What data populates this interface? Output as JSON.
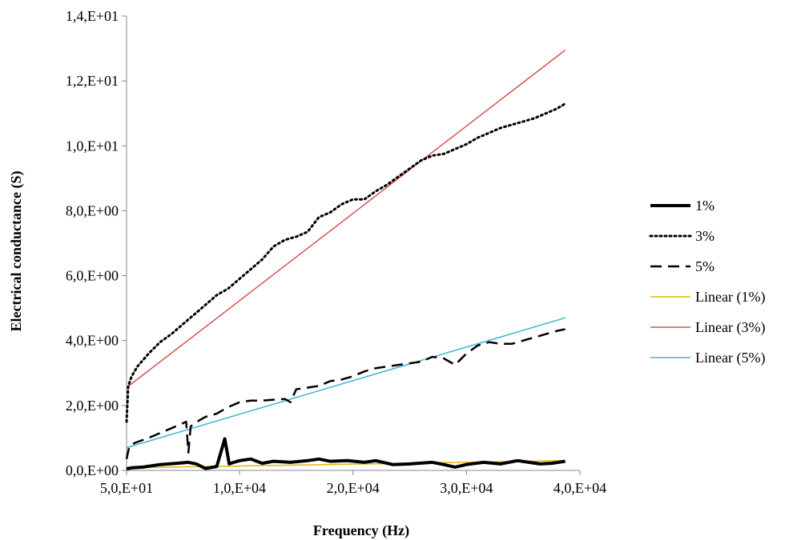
{
  "chart_data": {
    "type": "line",
    "title": "",
    "xlabel": "Frequency (Hz)",
    "ylabel": "Electrical conductance (S)",
    "xlim": [
      50,
      40000
    ],
    "ylim": [
      0,
      14
    ],
    "x_ticks": [
      {
        "value": 50,
        "label": "5,0,E+01"
      },
      {
        "value": 10000,
        "label": "1,0,E+04"
      },
      {
        "value": 20000,
        "label": "2,0,E+04"
      },
      {
        "value": 30000,
        "label": "3,0,E+04"
      },
      {
        "value": 40000,
        "label": "4,0,E+04"
      }
    ],
    "y_ticks": [
      {
        "value": 0,
        "label": "0,0,E+00"
      },
      {
        "value": 2,
        "label": "2,0,E+00"
      },
      {
        "value": 4,
        "label": "4,0,E+00"
      },
      {
        "value": 6,
        "label": "6,0,E+00"
      },
      {
        "value": 8,
        "label": "8,0,E+00"
      },
      {
        "value": 10,
        "label": "1,0,E+01"
      },
      {
        "value": 12,
        "label": "1,2,E+01"
      },
      {
        "value": 14,
        "label": "1,4,E+01"
      }
    ],
    "grid": false,
    "legend_position": "right",
    "series": [
      {
        "name": "1%",
        "style": "solid",
        "color": "#000000",
        "width": 4,
        "x": [
          50,
          500,
          1500,
          3000,
          4500,
          5500,
          6200,
          7000,
          8000,
          8700,
          9100,
          9500,
          10000,
          11000,
          12000,
          13000,
          14500,
          16000,
          17000,
          18000,
          19500,
          21000,
          22000,
          23500,
          25000,
          27000,
          28000,
          29000,
          30000,
          31500,
          33000,
          34500,
          35500,
          36500,
          37500,
          38700
        ],
        "y": [
          0.05,
          0.08,
          0.1,
          0.18,
          0.22,
          0.25,
          0.2,
          0.06,
          0.12,
          0.97,
          0.2,
          0.25,
          0.3,
          0.35,
          0.22,
          0.28,
          0.25,
          0.3,
          0.35,
          0.28,
          0.3,
          0.25,
          0.3,
          0.18,
          0.2,
          0.25,
          0.18,
          0.1,
          0.18,
          0.25,
          0.2,
          0.3,
          0.25,
          0.2,
          0.22,
          0.28
        ]
      },
      {
        "name": "3%",
        "style": "dotted",
        "color": "#000000",
        "width": 3,
        "x": [
          50,
          200,
          500,
          1000,
          2000,
          3000,
          4000,
          5000,
          6000,
          7000,
          8000,
          9000,
          10000,
          11000,
          12000,
          13000,
          14000,
          15000,
          16000,
          17000,
          18000,
          19000,
          20000,
          21000,
          22000,
          23000,
          24000,
          25000,
          26000,
          27000,
          28000,
          29000,
          30000,
          31000,
          32000,
          33000,
          34000,
          35000,
          36000,
          37000,
          38000,
          38700
        ],
        "y": [
          1.5,
          2.6,
          2.9,
          3.2,
          3.6,
          3.95,
          4.2,
          4.5,
          4.8,
          5.1,
          5.4,
          5.6,
          5.9,
          6.2,
          6.5,
          6.9,
          7.1,
          7.2,
          7.35,
          7.8,
          7.95,
          8.2,
          8.35,
          8.35,
          8.6,
          8.8,
          9.05,
          9.3,
          9.55,
          9.7,
          9.75,
          9.9,
          10.05,
          10.25,
          10.4,
          10.55,
          10.65,
          10.75,
          10.85,
          11.0,
          11.15,
          11.3
        ]
      },
      {
        "name": "5%",
        "style": "dashed",
        "color": "#000000",
        "width": 2.5,
        "x": [
          50,
          300,
          800,
          2000,
          3000,
          4000,
          5000,
          5300,
          5500,
          5700,
          6000,
          7000,
          8000,
          8500,
          9000,
          10000,
          11000,
          12000,
          13000,
          14000,
          14500,
          15000,
          16000,
          17000,
          18000,
          19000,
          20000,
          21000,
          22000,
          23000,
          24000,
          25000,
          26000,
          27000,
          28000,
          29000,
          30000,
          31000,
          32000,
          33000,
          34000,
          35000,
          36000,
          37000,
          38000,
          38700
        ],
        "y": [
          0.35,
          0.75,
          0.85,
          1.0,
          1.15,
          1.3,
          1.45,
          1.5,
          0.55,
          1.35,
          1.45,
          1.65,
          1.75,
          1.85,
          1.95,
          2.1,
          2.15,
          2.15,
          2.18,
          2.2,
          2.1,
          2.5,
          2.55,
          2.6,
          2.75,
          2.8,
          2.9,
          3.05,
          3.15,
          3.2,
          3.25,
          3.3,
          3.35,
          3.5,
          3.45,
          3.25,
          3.6,
          3.85,
          3.95,
          3.9,
          3.9,
          4.0,
          4.1,
          4.2,
          4.3,
          4.35
        ]
      },
      {
        "name": "Linear (1%)",
        "style": "solid",
        "color": "#E6B40A",
        "width": 1.5,
        "x": [
          50,
          38700
        ],
        "y": [
          0.08,
          0.3
        ]
      },
      {
        "name": "Linear (3%)",
        "style": "solid",
        "color": "#D9534F",
        "width": 1.5,
        "x": [
          50,
          38700
        ],
        "y": [
          2.55,
          12.95
        ]
      },
      {
        "name": "Linear (5%)",
        "style": "solid",
        "color": "#3BB4D2",
        "width": 1.5,
        "x": [
          50,
          38700
        ],
        "y": [
          0.7,
          4.7
        ]
      }
    ]
  }
}
